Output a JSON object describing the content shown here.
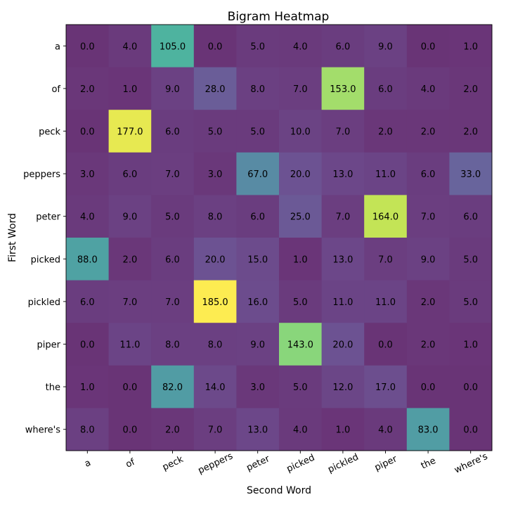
{
  "chart_data": {
    "type": "heatmap",
    "title": "Bigram Heatmap",
    "xlabel": "Second Word",
    "ylabel": "First Word",
    "x_categories": [
      "a",
      "of",
      "peck",
      "peppers",
      "peter",
      "picked",
      "pickled",
      "piper",
      "the",
      "where's"
    ],
    "y_categories": [
      "a",
      "of",
      "peck",
      "peppers",
      "peter",
      "picked",
      "pickled",
      "piper",
      "the",
      "where's"
    ],
    "values": [
      [
        0.0,
        4.0,
        105.0,
        0.0,
        5.0,
        4.0,
        6.0,
        9.0,
        0.0,
        1.0
      ],
      [
        2.0,
        1.0,
        9.0,
        28.0,
        8.0,
        7.0,
        153.0,
        6.0,
        4.0,
        2.0
      ],
      [
        0.0,
        177.0,
        6.0,
        5.0,
        5.0,
        10.0,
        7.0,
        2.0,
        2.0,
        2.0
      ],
      [
        3.0,
        6.0,
        7.0,
        3.0,
        67.0,
        20.0,
        13.0,
        11.0,
        6.0,
        33.0
      ],
      [
        4.0,
        9.0,
        5.0,
        8.0,
        6.0,
        25.0,
        7.0,
        164.0,
        7.0,
        6.0
      ],
      [
        88.0,
        2.0,
        6.0,
        20.0,
        15.0,
        1.0,
        13.0,
        7.0,
        9.0,
        5.0
      ],
      [
        6.0,
        7.0,
        7.0,
        185.0,
        16.0,
        5.0,
        11.0,
        11.0,
        2.0,
        5.0
      ],
      [
        0.0,
        11.0,
        8.0,
        8.0,
        9.0,
        143.0,
        20.0,
        0.0,
        2.0,
        1.0
      ],
      [
        1.0,
        0.0,
        82.0,
        14.0,
        3.0,
        5.0,
        12.0,
        17.0,
        0.0,
        0.0
      ],
      [
        8.0,
        0.0,
        2.0,
        7.0,
        13.0,
        4.0,
        1.0,
        4.0,
        83.0,
        0.0
      ]
    ],
    "value_range": [
      0,
      185
    ],
    "colormap": "viridis",
    "cell_opacity": 0.8,
    "value_format": "one-decimal",
    "x_tick_rotation_deg": 25,
    "grid": false,
    "legend": "none"
  }
}
